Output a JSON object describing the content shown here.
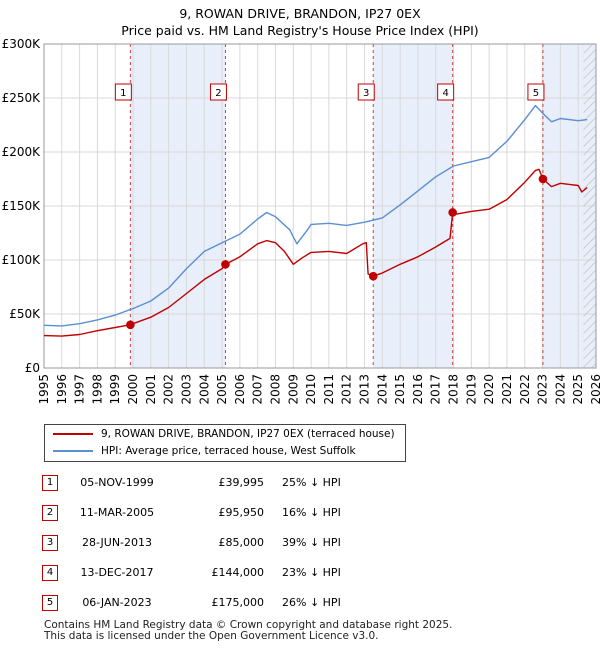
{
  "title": "9, ROWAN DRIVE, BRANDON, IP27 0EX",
  "subtitle": "Price paid vs. HM Land Registry's House Price Index (HPI)",
  "chart_data": {
    "type": "line",
    "xlim": [
      1995,
      2026
    ],
    "ylim": [
      0,
      300000
    ],
    "y_ticks": [
      0,
      50000,
      100000,
      150000,
      200000,
      250000,
      300000
    ],
    "y_tick_labels": [
      "£0",
      "£50K",
      "£100K",
      "£150K",
      "£200K",
      "£250K",
      "£300K"
    ],
    "x_ticks": [
      1995,
      1996,
      1997,
      1998,
      1999,
      2000,
      2001,
      2002,
      2003,
      2004,
      2005,
      2006,
      2007,
      2008,
      2009,
      2010,
      2011,
      2012,
      2013,
      2014,
      2015,
      2016,
      2017,
      2018,
      2019,
      2020,
      2021,
      2022,
      2023,
      2024,
      2025,
      2026
    ],
    "x_tick_labels": [
      "1995",
      "1996",
      "1997",
      "1998",
      "1999",
      "2000",
      "2001",
      "2002",
      "2003",
      "2004",
      "2005",
      "2006",
      "2007",
      "2008",
      "2009",
      "2010",
      "2011",
      "2012",
      "2013",
      "2014",
      "2015",
      "2016",
      "2017",
      "2018",
      "2019",
      "2020",
      "2021",
      "2022",
      "2023",
      "2024",
      "2025",
      "2026"
    ],
    "grid": true,
    "shaded_periods": [
      [
        1999.85,
        2005.19
      ],
      [
        2013.49,
        2017.95
      ],
      [
        2023.02,
        2026
      ]
    ],
    "future_hatch_from": 2025.3,
    "series": [
      {
        "name": "9, ROWAN DRIVE, BRANDON, IP27 0EX (terraced house)",
        "color": "#c00000",
        "points": [
          [
            1995,
            30000
          ],
          [
            1996,
            29500
          ],
          [
            1997,
            31000
          ],
          [
            1998,
            34500
          ],
          [
            1999,
            37500
          ],
          [
            1999.85,
            39995
          ],
          [
            2000,
            41000
          ],
          [
            2001,
            47000
          ],
          [
            2002,
            56000
          ],
          [
            2003,
            69000
          ],
          [
            2004,
            82000
          ],
          [
            2005,
            92000
          ],
          [
            2005.19,
            95950
          ],
          [
            2006,
            103000
          ],
          [
            2007,
            115000
          ],
          [
            2007.5,
            118000
          ],
          [
            2008,
            116000
          ],
          [
            2008.5,
            108000
          ],
          [
            2009,
            96000
          ],
          [
            2009.5,
            102000
          ],
          [
            2010,
            107000
          ],
          [
            2011,
            108000
          ],
          [
            2012,
            106000
          ],
          [
            2012.9,
            115000
          ],
          [
            2013.1,
            116000
          ],
          [
            2013.2,
            87000
          ],
          [
            2013.49,
            85000
          ],
          [
            2014,
            88000
          ],
          [
            2015,
            96000
          ],
          [
            2016,
            103000
          ],
          [
            2017,
            112000
          ],
          [
            2017.8,
            120000
          ],
          [
            2017.95,
            144000
          ],
          [
            2018,
            142000
          ],
          [
            2019,
            145000
          ],
          [
            2020,
            147000
          ],
          [
            2021,
            156000
          ],
          [
            2022,
            172000
          ],
          [
            2022.6,
            183000
          ],
          [
            2022.8,
            184000
          ],
          [
            2023.02,
            175000
          ],
          [
            2023.5,
            168000
          ],
          [
            2024,
            171000
          ],
          [
            2024.5,
            170000
          ],
          [
            2025,
            169000
          ],
          [
            2025.2,
            163000
          ],
          [
            2025.5,
            167000
          ]
        ]
      },
      {
        "name": "HPI: Average price, terraced house, West Suffolk",
        "color": "#5b8fd1",
        "points": [
          [
            1995,
            39500
          ],
          [
            1996,
            39000
          ],
          [
            1997,
            41000
          ],
          [
            1998,
            44500
          ],
          [
            1999,
            49000
          ],
          [
            2000,
            55000
          ],
          [
            2001,
            62000
          ],
          [
            2002,
            74000
          ],
          [
            2003,
            92000
          ],
          [
            2004,
            108000
          ],
          [
            2005,
            116000
          ],
          [
            2006,
            124000
          ],
          [
            2007,
            138000
          ],
          [
            2007.5,
            144000
          ],
          [
            2008,
            140000
          ],
          [
            2008.8,
            128000
          ],
          [
            2009.2,
            115000
          ],
          [
            2009.8,
            128000
          ],
          [
            2010,
            133000
          ],
          [
            2011,
            134000
          ],
          [
            2012,
            132000
          ],
          [
            2013,
            135000
          ],
          [
            2014,
            139000
          ],
          [
            2015,
            151000
          ],
          [
            2016,
            164000
          ],
          [
            2017,
            177000
          ],
          [
            2018,
            187000
          ],
          [
            2019,
            191000
          ],
          [
            2020,
            195000
          ],
          [
            2021,
            210000
          ],
          [
            2022,
            230000
          ],
          [
            2022.6,
            243000
          ],
          [
            2023,
            236000
          ],
          [
            2023.5,
            228000
          ],
          [
            2024,
            231000
          ],
          [
            2025,
            229000
          ],
          [
            2025.5,
            230000
          ]
        ]
      }
    ],
    "sale_markers": [
      {
        "label": "1",
        "x": 1999.85,
        "y": 39995
      },
      {
        "label": "2",
        "x": 2005.19,
        "y": 95950
      },
      {
        "label": "3",
        "x": 2013.49,
        "y": 85000
      },
      {
        "label": "4",
        "x": 2017.95,
        "y": 144000
      },
      {
        "label": "5",
        "x": 2023.02,
        "y": 175000
      }
    ]
  },
  "legend": {
    "property_label": "9, ROWAN DRIVE, BRANDON, IP27 0EX (terraced house)",
    "hpi_label": "HPI: Average price, terraced house, West Suffolk",
    "property_color": "#c00000",
    "hpi_color": "#5b8fd1"
  },
  "sales": [
    {
      "num": "1",
      "date": "05-NOV-1999",
      "price": "£39,995",
      "hpi": "25% ↓ HPI"
    },
    {
      "num": "2",
      "date": "11-MAR-2005",
      "price": "£95,950",
      "hpi": "16% ↓ HPI"
    },
    {
      "num": "3",
      "date": "28-JUN-2013",
      "price": "£85,000",
      "hpi": "39% ↓ HPI"
    },
    {
      "num": "4",
      "date": "13-DEC-2017",
      "price": "£144,000",
      "hpi": "23% ↓ HPI"
    },
    {
      "num": "5",
      "date": "06-JAN-2023",
      "price": "£175,000",
      "hpi": "26% ↓ HPI"
    }
  ],
  "footer": {
    "line1": "Contains HM Land Registry data © Crown copyright and database right 2025.",
    "line2": "This data is licensed under the Open Government Licence v3.0."
  }
}
